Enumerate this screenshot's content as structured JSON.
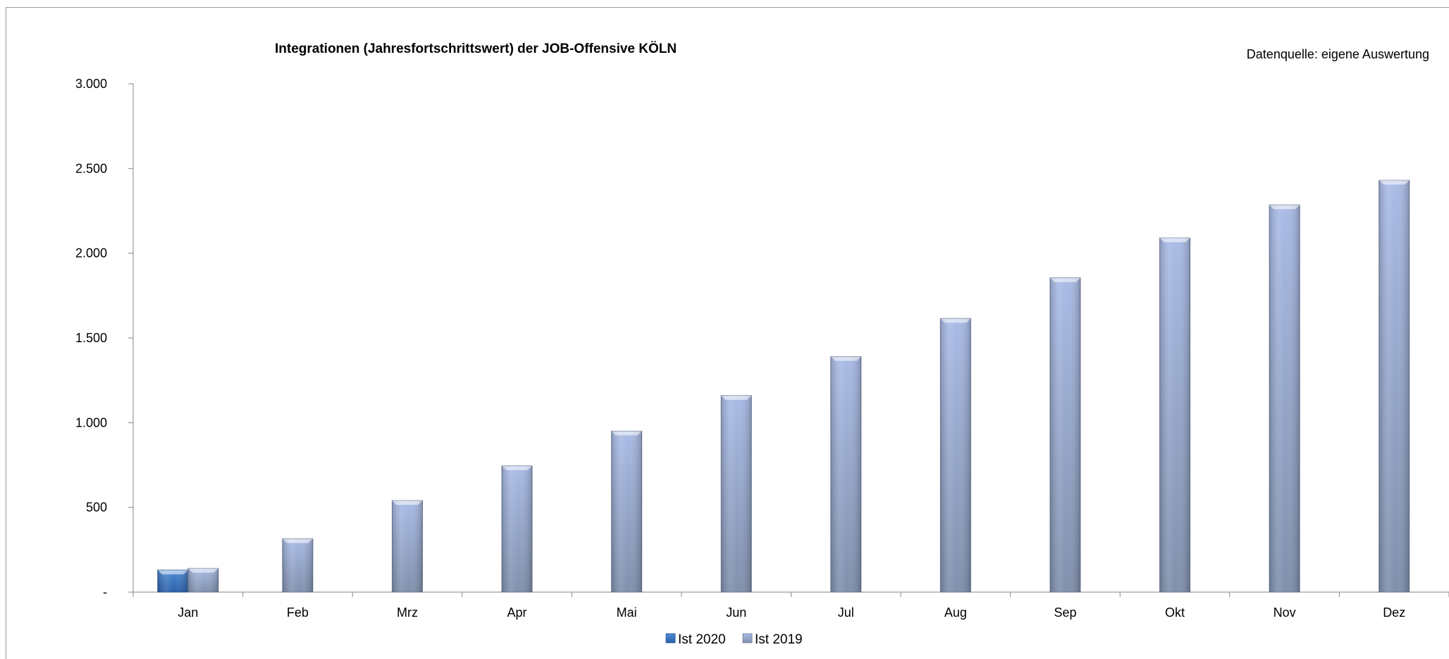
{
  "chart_data": {
    "type": "bar",
    "title": "Integrationen (Jahresfortschrittswert) der JOB-Offensive KÖLN",
    "source_note": "Datenquelle: eigene Auswertung",
    "categories": [
      "Jan",
      "Feb",
      "Mrz",
      "Apr",
      "Mai",
      "Jun",
      "Jul",
      "Aug",
      "Sep",
      "Okt",
      "Nov",
      "Dez"
    ],
    "series": [
      {
        "name": "Ist 2020",
        "values": [
          130,
          null,
          null,
          null,
          null,
          null,
          null,
          null,
          null,
          null,
          null,
          null
        ],
        "color": "#3a73c0"
      },
      {
        "name": "Ist 2019",
        "values": [
          140,
          315,
          540,
          745,
          950,
          1160,
          1390,
          1615,
          1855,
          2090,
          2285,
          2430
        ],
        "color": "#95a7cf"
      }
    ],
    "ylim": [
      0,
      3000
    ],
    "yticks": [
      {
        "value": 0,
        "label": "-"
      },
      {
        "value": 500,
        "label": "500"
      },
      {
        "value": 1000,
        "label": "1.000"
      },
      {
        "value": 1500,
        "label": "1.500"
      },
      {
        "value": 2000,
        "label": "2.000"
      },
      {
        "value": 2500,
        "label": "2.500"
      },
      {
        "value": 3000,
        "label": "3.000"
      }
    ],
    "xlabel": "",
    "ylabel": "",
    "grid": false,
    "legend_position": "bottom"
  }
}
